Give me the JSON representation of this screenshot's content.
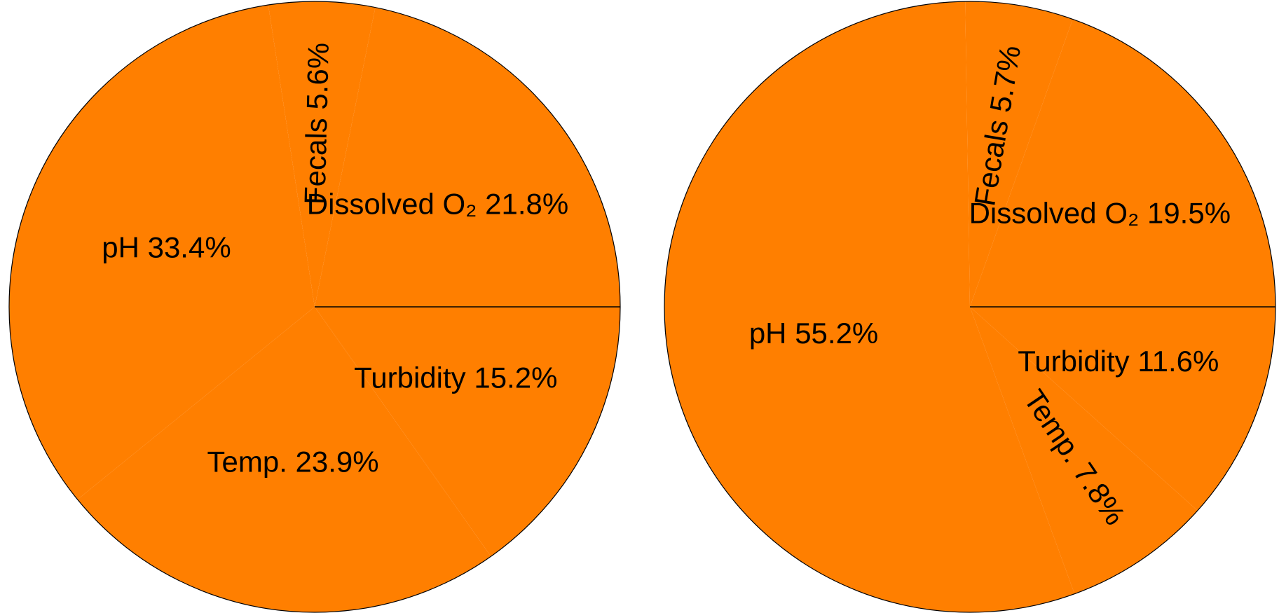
{
  "chart_data": [
    {
      "type": "pie",
      "color": "#ff7f00",
      "categories": [
        "Dissolved O₂",
        "Fecals",
        "pH",
        "Temp.",
        "Turbidity"
      ],
      "values": [
        21.8,
        5.6,
        33.4,
        23.9,
        15.2
      ],
      "value_labels": [
        "21.8%",
        "5.6%",
        "33.4%",
        "23.9%",
        "15.2%"
      ]
    },
    {
      "type": "pie",
      "color": "#ff7f00",
      "categories": [
        "Dissolved O₂",
        "Fecals",
        "pH",
        "Temp.",
        "Turbidity"
      ],
      "values": [
        19.5,
        5.7,
        55.2,
        7.8,
        11.6
      ],
      "value_labels": [
        "19.5%",
        "5.7%",
        "55.2%",
        "7.8%",
        "11.6%"
      ]
    }
  ]
}
